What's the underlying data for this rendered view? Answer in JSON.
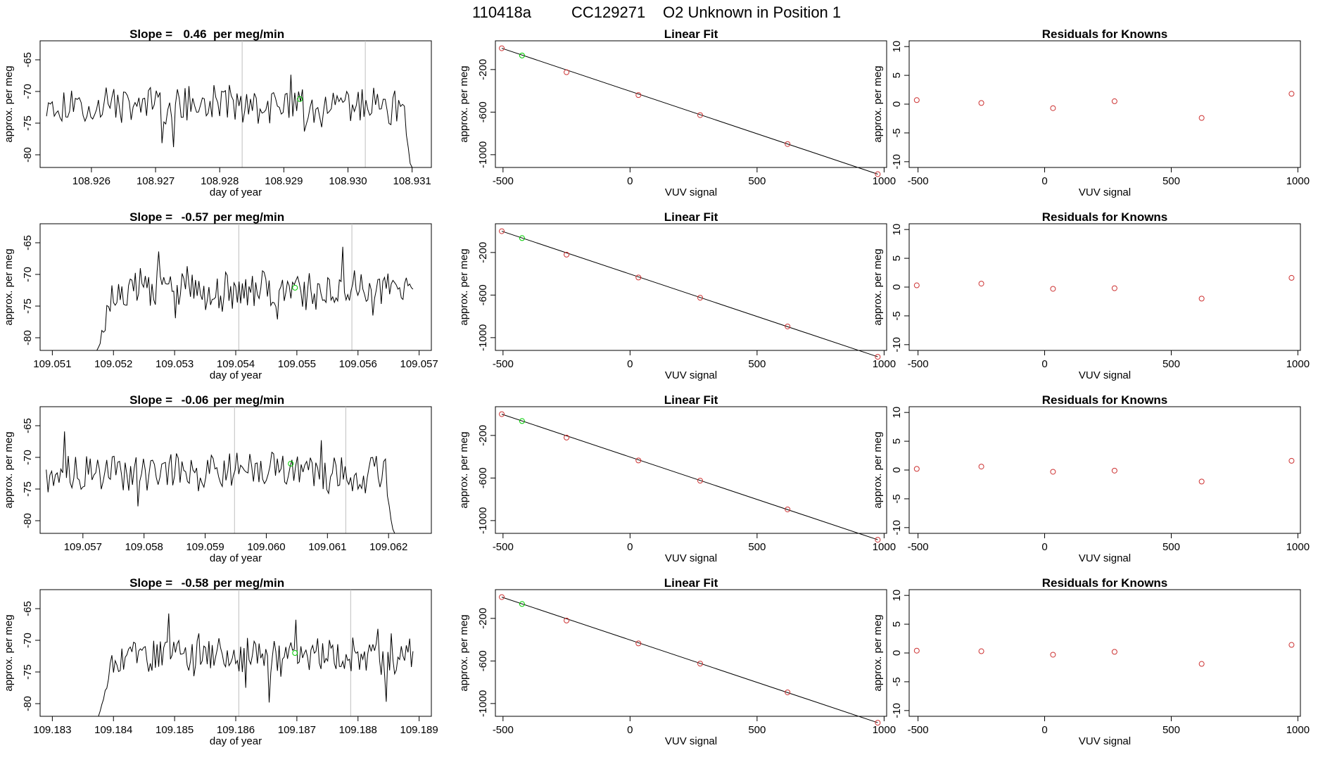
{
  "header": {
    "id": "110418a",
    "sample": "CC129271",
    "description": "O2 Unknown in Position  1"
  },
  "labels": {
    "day_of_year": "day of year",
    "approx_per_meg": "approx. per meg",
    "vuv_signal": "VUV signal",
    "linear_fit_title": "Linear Fit",
    "residuals_title": "Residuals for Knowns",
    "slope_prefix": "Slope = ",
    "slope_suffix": " per meg/min"
  },
  "colors": {
    "axis": "#000000",
    "series_line": "#000000",
    "vertical_markers": "#bebebe",
    "known_points": "#cd3333",
    "unknown_point": "#00cd00"
  },
  "chart_data": [
    {
      "type": "line",
      "title_slope": "0.46",
      "xlim": [
        108.9252,
        108.9313
      ],
      "ylim": [
        -82,
        -62
      ],
      "xticks": [
        "108.926",
        "108.927",
        "108.928",
        "108.929",
        "108.930",
        "108.931"
      ],
      "yticks": [
        "-65",
        "-70",
        "-75",
        "-80"
      ],
      "series_start": 108.9253,
      "series_end": 108.931,
      "start_drop": false,
      "end_drop": true,
      "vlines": [
        108.92835,
        108.93027
      ],
      "unknown_point": [
        108.92925,
        -71.2
      ],
      "seed": 11
    },
    {
      "type": "line",
      "title_slope": "-0.57",
      "xlim": [
        109.0508,
        109.0572
      ],
      "ylim": [
        -82,
        -62
      ],
      "xticks": [
        "109.051",
        "109.052",
        "109.053",
        "109.054",
        "109.055",
        "109.056",
        "109.057"
      ],
      "yticks": [
        "-65",
        "-70",
        "-75",
        "-80"
      ],
      "series_start": 109.0517,
      "series_end": 109.0569,
      "start_drop": true,
      "end_drop": false,
      "vlines": [
        109.05405,
        109.0559
      ],
      "unknown_point": [
        109.05497,
        -72.1
      ],
      "seed": 23
    },
    {
      "type": "line",
      "title_slope": "-0.06",
      "xlim": [
        109.0563,
        109.0627
      ],
      "ylim": [
        -82,
        -62
      ],
      "xticks": [
        "109.057",
        "109.058",
        "109.059",
        "109.060",
        "109.061",
        "109.062"
      ],
      "yticks": [
        "-65",
        "-70",
        "-75",
        "-80"
      ],
      "series_start": 109.0564,
      "series_end": 109.0621,
      "start_drop": false,
      "end_drop": true,
      "vlines": [
        109.05948,
        109.0613
      ],
      "unknown_point": [
        109.0604,
        -71.0
      ],
      "seed": 37
    },
    {
      "type": "line",
      "title_slope": "-0.58",
      "xlim": [
        109.1828,
        109.1892
      ],
      "ylim": [
        -82,
        -62
      ],
      "xticks": [
        "109.183",
        "109.184",
        "109.185",
        "109.186",
        "109.187",
        "109.188",
        "109.189"
      ],
      "yticks": [
        "-65",
        "-70",
        "-75",
        "-80"
      ],
      "series_start": 109.1837,
      "series_end": 109.1889,
      "start_drop": true,
      "end_drop": false,
      "vlines": [
        109.18605,
        109.18788
      ],
      "unknown_point": [
        109.18697,
        -72.0
      ],
      "seed": 53
    },
    {
      "type": "scatter",
      "title": "Linear Fit",
      "xlim": [
        -530,
        1010
      ],
      "ylim": [
        -1120,
        70
      ],
      "xticks": [
        -500,
        0,
        500,
        1000
      ],
      "yticks": [
        -200,
        -600,
        -1000
      ],
      "known_points": [
        [
          -505,
          0
        ],
        [
          -250,
          -225
        ],
        [
          33,
          -440
        ],
        [
          276,
          -628
        ],
        [
          620,
          -900
        ],
        [
          975,
          -1183
        ]
      ],
      "unknown_point": [
        -425,
        -68
      ],
      "fit_line": [
        [
          -505,
          0
        ],
        [
          975,
          -1183
        ]
      ]
    },
    {
      "type": "scatter",
      "title": "Linear Fit",
      "xlim": [
        -530,
        1010
      ],
      "ylim": [
        -1120,
        70
      ],
      "xticks": [
        -500,
        0,
        500,
        1000
      ],
      "yticks": [
        -200,
        -600,
        -1000
      ],
      "known_points": [
        [
          -505,
          0
        ],
        [
          -250,
          -220
        ],
        [
          33,
          -435
        ],
        [
          276,
          -625
        ],
        [
          620,
          -895
        ],
        [
          975,
          -1180
        ]
      ],
      "unknown_point": [
        -425,
        -65
      ],
      "fit_line": [
        [
          -505,
          0
        ],
        [
          975,
          -1180
        ]
      ]
    },
    {
      "type": "scatter",
      "title": "Linear Fit",
      "xlim": [
        -530,
        1010
      ],
      "ylim": [
        -1120,
        70
      ],
      "xticks": [
        -500,
        0,
        500,
        1000
      ],
      "yticks": [
        -200,
        -600,
        -1000
      ],
      "known_points": [
        [
          -505,
          0
        ],
        [
          -250,
          -220
        ],
        [
          33,
          -435
        ],
        [
          276,
          -625
        ],
        [
          620,
          -895
        ],
        [
          975,
          -1180
        ]
      ],
      "unknown_point": [
        -425,
        -65
      ],
      "fit_line": [
        [
          -505,
          0
        ],
        [
          975,
          -1180
        ]
      ]
    },
    {
      "type": "scatter",
      "title": "Linear Fit",
      "xlim": [
        -530,
        1010
      ],
      "ylim": [
        -1120,
        70
      ],
      "xticks": [
        -500,
        0,
        500,
        1000
      ],
      "yticks": [
        -200,
        -600,
        -1000
      ],
      "known_points": [
        [
          -505,
          0
        ],
        [
          -250,
          -220
        ],
        [
          33,
          -435
        ],
        [
          276,
          -625
        ],
        [
          620,
          -895
        ],
        [
          975,
          -1180
        ]
      ],
      "unknown_point": [
        -425,
        -65
      ],
      "fit_line": [
        [
          -505,
          0
        ],
        [
          975,
          -1180
        ]
      ]
    },
    {
      "type": "scatter",
      "title": "Residuals for Knowns",
      "xlim": [
        -535,
        1010
      ],
      "ylim": [
        -11,
        11
      ],
      "xticks": [
        -500,
        0,
        500,
        1000
      ],
      "yticks": [
        10,
        5,
        0,
        -5,
        -10
      ],
      "points": [
        [
          -505,
          0.7
        ],
        [
          -250,
          0.2
        ],
        [
          33,
          -0.7
        ],
        [
          276,
          0.5
        ],
        [
          620,
          -2.4
        ],
        [
          975,
          1.8
        ]
      ]
    },
    {
      "type": "scatter",
      "title": "Residuals for Knowns",
      "xlim": [
        -535,
        1010
      ],
      "ylim": [
        -11,
        11
      ],
      "xticks": [
        -500,
        0,
        500,
        1000
      ],
      "yticks": [
        10,
        5,
        0,
        -5,
        -10
      ],
      "points": [
        [
          -505,
          0.3
        ],
        [
          -250,
          0.6
        ],
        [
          33,
          -0.3
        ],
        [
          276,
          -0.2
        ],
        [
          620,
          -2.0
        ],
        [
          975,
          1.6
        ]
      ]
    },
    {
      "type": "scatter",
      "title": "Residuals for Knowns",
      "xlim": [
        -535,
        1010
      ],
      "ylim": [
        -11,
        11
      ],
      "xticks": [
        -500,
        0,
        500,
        1000
      ],
      "yticks": [
        10,
        5,
        0,
        -5,
        -10
      ],
      "points": [
        [
          -505,
          0.2
        ],
        [
          -250,
          0.6
        ],
        [
          33,
          -0.3
        ],
        [
          276,
          -0.1
        ],
        [
          620,
          -2.0
        ],
        [
          975,
          1.6
        ]
      ]
    },
    {
      "type": "scatter",
      "title": "Residuals for Knowns",
      "xlim": [
        -535,
        1010
      ],
      "ylim": [
        -11,
        11
      ],
      "xticks": [
        -500,
        0,
        500,
        1000
      ],
      "yticks": [
        10,
        5,
        0,
        -5,
        -10
      ],
      "points": [
        [
          -505,
          0.4
        ],
        [
          -250,
          0.3
        ],
        [
          33,
          -0.3
        ],
        [
          276,
          0.2
        ],
        [
          620,
          -1.9
        ],
        [
          975,
          1.4
        ]
      ]
    }
  ]
}
